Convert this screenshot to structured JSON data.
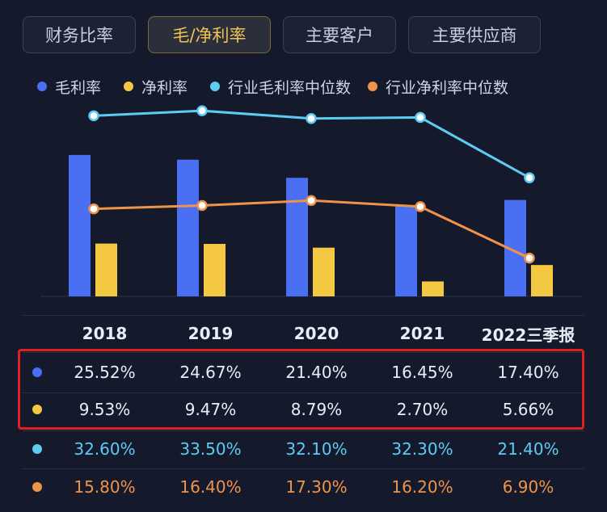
{
  "tabs": [
    {
      "label": "财务比率",
      "active": false
    },
    {
      "label": "毛/净利率",
      "active": true
    },
    {
      "label": "主要客户",
      "active": false
    },
    {
      "label": "主要供应商",
      "active": false
    }
  ],
  "colors": {
    "gross": "#4a6ff2",
    "net": "#f5c842",
    "ind_gross": "#5ecbf2",
    "ind_net": "#f0934a"
  },
  "chart_data": {
    "type": "bar",
    "categories": [
      "2018",
      "2019",
      "2020",
      "2021",
      "2022三季报"
    ],
    "series": [
      {
        "name": "毛利率",
        "kind": "bar",
        "color": "#4a6ff2",
        "values": [
          25.52,
          24.67,
          21.4,
          16.45,
          17.4
        ]
      },
      {
        "name": "净利率",
        "kind": "bar",
        "color": "#f5c842",
        "values": [
          9.53,
          9.47,
          8.79,
          2.7,
          5.66
        ]
      },
      {
        "name": "行业毛利率中位数",
        "kind": "line",
        "color": "#5ecbf2",
        "values": [
          32.6,
          33.5,
          32.1,
          32.3,
          21.4
        ]
      },
      {
        "name": "行业净利率中位数",
        "kind": "line",
        "color": "#f0934a",
        "values": [
          15.8,
          16.4,
          17.3,
          16.2,
          6.9
        ]
      }
    ],
    "ylim": [
      0,
      36
    ],
    "legend": "top",
    "grid": false
  },
  "table": {
    "header": [
      "2018",
      "2019",
      "2020",
      "2021",
      "2022三季报"
    ],
    "rows": [
      {
        "series": "毛利率",
        "color": "#4a6ff2",
        "text_color": "#e8ecf6",
        "cells": [
          "25.52%",
          "24.67%",
          "21.40%",
          "16.45%",
          "17.40%"
        ]
      },
      {
        "series": "净利率",
        "color": "#f5c842",
        "text_color": "#e8ecf6",
        "cells": [
          "9.53%",
          "9.47%",
          "8.79%",
          "2.70%",
          "5.66%"
        ]
      },
      {
        "series": "行业毛利率中位数",
        "color": "#5ecbf2",
        "text_color": "#5ecbf2",
        "cells": [
          "32.60%",
          "33.50%",
          "32.10%",
          "32.30%",
          "21.40%"
        ]
      },
      {
        "series": "行业净利率中位数",
        "color": "#f0934a",
        "text_color": "#f0934a",
        "cells": [
          "15.80%",
          "16.40%",
          "17.30%",
          "16.20%",
          "6.90%"
        ]
      }
    ]
  }
}
